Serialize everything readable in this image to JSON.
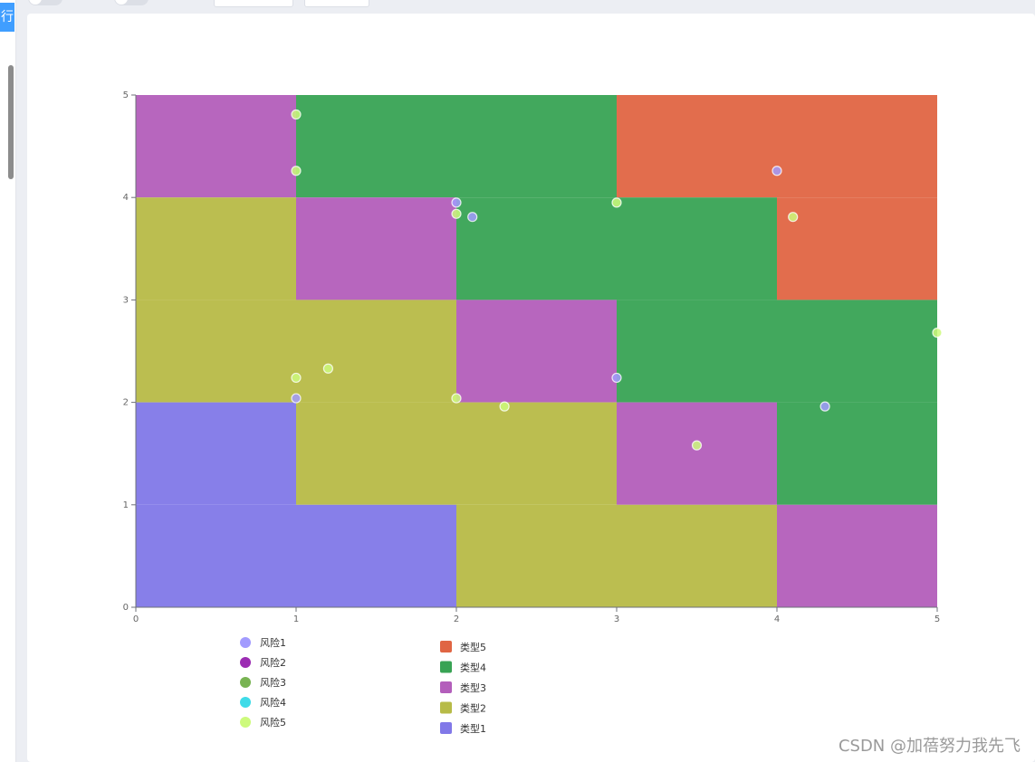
{
  "sidebar": {
    "run_button": "行"
  },
  "watermark": "CSDN @加蓓努力我先飞",
  "chart_data": {
    "type": "heatmap",
    "xlim": [
      0,
      5
    ],
    "ylim": [
      0,
      5
    ],
    "x_ticks": [
      "0",
      "1",
      "2",
      "3",
      "4",
      "5"
    ],
    "y_ticks": [
      "0",
      "1",
      "2",
      "3",
      "4",
      "5"
    ],
    "grid": false,
    "legend_placement": "bottom",
    "types": [
      {
        "name": "类型5",
        "color": "#e06543"
      },
      {
        "name": "类型4",
        "color": "#38a354"
      },
      {
        "name": "类型3",
        "color": "#b35ebb"
      },
      {
        "name": "类型2",
        "color": "#b7bb47"
      },
      {
        "name": "类型1",
        "color": "#8178e8"
      }
    ],
    "cells": [
      {
        "x": [
          0,
          1
        ],
        "y": [
          4,
          5
        ],
        "type": "类型3"
      },
      {
        "x": [
          1,
          3
        ],
        "y": [
          4,
          5
        ],
        "type": "类型4"
      },
      {
        "x": [
          3,
          5
        ],
        "y": [
          4,
          5
        ],
        "type": "类型5"
      },
      {
        "x": [
          0,
          1
        ],
        "y": [
          3,
          4
        ],
        "type": "类型2"
      },
      {
        "x": [
          1,
          2
        ],
        "y": [
          3,
          4
        ],
        "type": "类型3"
      },
      {
        "x": [
          2,
          4
        ],
        "y": [
          3,
          4
        ],
        "type": "类型4"
      },
      {
        "x": [
          4,
          5
        ],
        "y": [
          3,
          4
        ],
        "type": "类型5"
      },
      {
        "x": [
          0,
          2
        ],
        "y": [
          2,
          3
        ],
        "type": "类型2"
      },
      {
        "x": [
          2,
          3
        ],
        "y": [
          2,
          3
        ],
        "type": "类型3"
      },
      {
        "x": [
          3,
          5
        ],
        "y": [
          2,
          3
        ],
        "type": "类型4"
      },
      {
        "x": [
          0,
          1
        ],
        "y": [
          1,
          2
        ],
        "type": "类型1"
      },
      {
        "x": [
          1,
          3
        ],
        "y": [
          1,
          2
        ],
        "type": "类型2"
      },
      {
        "x": [
          3,
          4
        ],
        "y": [
          1,
          2
        ],
        "type": "类型3"
      },
      {
        "x": [
          4,
          5
        ],
        "y": [
          1,
          2
        ],
        "type": "类型4"
      },
      {
        "x": [
          0,
          2
        ],
        "y": [
          0,
          1
        ],
        "type": "类型1"
      },
      {
        "x": [
          2,
          4
        ],
        "y": [
          0,
          1
        ],
        "type": "类型2"
      },
      {
        "x": [
          4,
          5
        ],
        "y": [
          0,
          1
        ],
        "type": "类型3"
      }
    ],
    "series": [
      {
        "name": "风险1",
        "color": "#a29bfe",
        "points": [
          [
            2,
            3.95
          ],
          [
            2.1,
            3.81
          ],
          [
            4,
            4.26
          ],
          [
            3,
            2.24
          ],
          [
            4.3,
            1.96
          ],
          [
            1,
            2.04
          ]
        ]
      },
      {
        "name": "风险2",
        "color": "#9c2db3",
        "points": []
      },
      {
        "name": "风险3",
        "color": "#78b352",
        "points": []
      },
      {
        "name": "风险4",
        "color": "#3fdbe8",
        "points": []
      },
      {
        "name": "风险5",
        "color": "#cdfa7c",
        "points": [
          [
            1,
            4.81
          ],
          [
            1,
            4.26
          ],
          [
            2,
            3.84
          ],
          [
            3,
            3.95
          ],
          [
            4.1,
            3.81
          ],
          [
            5,
            2.68
          ],
          [
            1,
            2.24
          ],
          [
            1.2,
            2.33
          ],
          [
            2,
            2.04
          ],
          [
            2.3,
            1.96
          ],
          [
            3.5,
            1.58
          ]
        ]
      }
    ]
  }
}
